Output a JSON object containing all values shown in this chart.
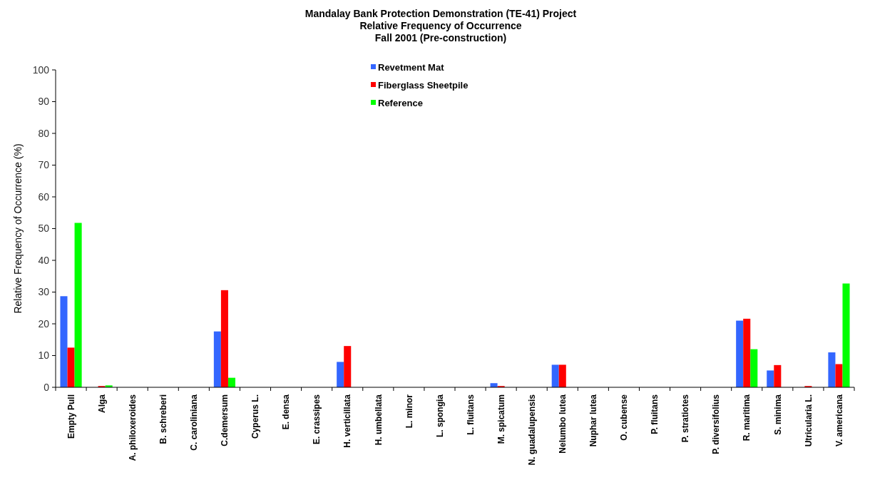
{
  "chart_data": {
    "type": "bar",
    "title": "Mandalay Bank Protection Demonstration (TE-41) Project",
    "subtitle": "Relative Frequency of Occurrence\nFall 2001 (Pre-construction)",
    "ylabel": "Relative Frequency of Occurrence (%)",
    "categories": [
      "Empty Pull",
      "Alga",
      "A. philoxeroides",
      "B. schreberi",
      "C. caroliniana",
      "C.demersum",
      "Cyperus L.",
      "E. densa",
      "E. crassipes",
      "H. verticillata",
      "H. umbellata",
      "L. minor",
      "L. spongia",
      "L. fluitans",
      "M. spicatum",
      "N. guadalupensis",
      "Nelumbo lutea",
      "Nuphar lutea",
      "O. cubense",
      "P. fluitans",
      "P. stratiotes",
      "P. diversifolius",
      "R. maritima",
      "S. minima",
      "Utricularia L.",
      "V. americana"
    ],
    "series": [
      {
        "name": "Revetment Mat",
        "color": "#3366ff",
        "values": [
          28.7,
          0,
          0,
          0,
          0,
          17.6,
          0,
          0,
          0,
          8,
          0,
          0,
          0,
          0,
          1.3,
          0,
          7.1,
          0,
          0,
          0,
          0,
          0,
          21,
          5.3,
          0,
          11
        ]
      },
      {
        "name": "Fiberglass Sheetpile",
        "color": "#ff0000",
        "values": [
          12.5,
          0.4,
          0,
          0,
          0,
          30.6,
          0,
          0,
          0,
          13,
          0,
          0,
          0,
          0,
          0.4,
          0,
          7.1,
          0,
          0,
          0,
          0,
          0,
          21.6,
          7,
          0.4,
          7.3
        ]
      },
      {
        "name": "Reference",
        "color": "#00ff00",
        "values": [
          51.8,
          0.6,
          0,
          0,
          0,
          3,
          0,
          0,
          0,
          0,
          0,
          0,
          0,
          0,
          0,
          0,
          0,
          0,
          0,
          0,
          0,
          0,
          12,
          0,
          0,
          32.7
        ]
      }
    ],
    "ylim": [
      0,
      100
    ],
    "yticks": [
      0,
      10,
      20,
      30,
      40,
      50,
      60,
      70,
      80,
      90,
      100
    ],
    "grid": false,
    "legend": "top"
  }
}
